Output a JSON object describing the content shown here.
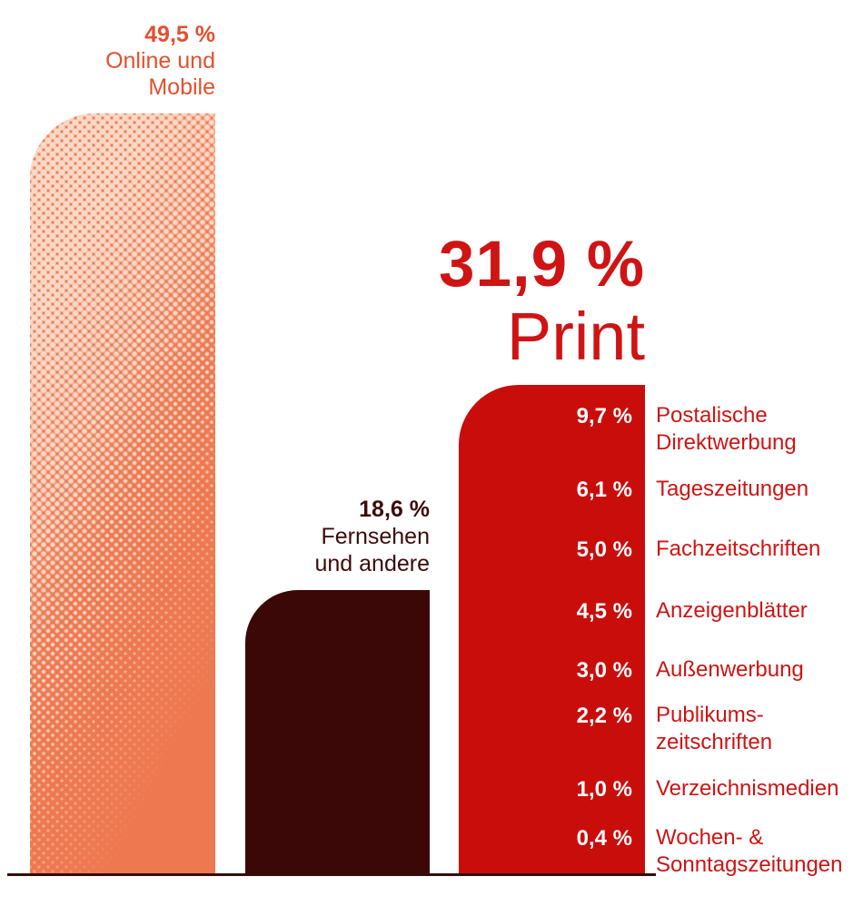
{
  "chart_data": {
    "type": "bar",
    "categories": [
      "Online und Mobile",
      "Fernsehen und andere",
      "Print"
    ],
    "values": [
      49.5,
      18.6,
      31.9
    ],
    "value_labels": [
      "49,5 %",
      "18,6 %",
      "31,9 %"
    ],
    "unit": "% share",
    "bar_colors": [
      "#ee7951",
      "#3b0707",
      "#c90d0b"
    ],
    "legend": false,
    "grid": false,
    "baseline_axis": true,
    "print_breakdown": {
      "values": [
        9.7,
        6.1,
        5.0,
        4.5,
        3.0,
        2.2,
        1.0,
        0.4
      ],
      "value_labels": [
        "9,7 %",
        "6,1 %",
        "5,0 %",
        "4,5 %",
        "3,0 %",
        "2,2 %",
        "1,0 %",
        "0,4 %"
      ],
      "labels": [
        "Postalische Direktwerbung",
        "Tageszeitungen",
        "Fachzeitschriften",
        "Anzeigenblätter",
        "Außenwerbung",
        "Publikumszeitschriften",
        "Verzeichnismedien",
        "Wochen- & Sonntagszeitungen"
      ]
    }
  },
  "labels": {
    "online": {
      "value": "49,5 %",
      "lines": [
        "Online und",
        "Mobile"
      ]
    },
    "tv": {
      "value": "18,6 %",
      "lines": [
        "Fernsehen",
        "und andere"
      ]
    },
    "print": {
      "value": "31,9 %",
      "name": "Print"
    },
    "rows": [
      {
        "value": "9,7 %",
        "lines": [
          "Postalische",
          "Direktwerbung"
        ]
      },
      {
        "value": "6,1 %",
        "lines": [
          "Tageszeitungen"
        ]
      },
      {
        "value": "5,0 %",
        "lines": [
          "Fachzeitschriften"
        ]
      },
      {
        "value": "4,5 %",
        "lines": [
          "Anzeigenblätter"
        ]
      },
      {
        "value": "3,0 %",
        "lines": [
          "Außenwerbung"
        ]
      },
      {
        "value": "2,2 %",
        "lines": [
          "Publikums-",
          "zeitschriften"
        ]
      },
      {
        "value": "1,0 %",
        "lines": [
          "Verzeichnismedien"
        ]
      },
      {
        "value": "0,4 %",
        "lines": [
          "Wochen- &",
          "Sonntagszeitungen"
        ]
      }
    ]
  },
  "colors": {
    "online_bar": "#ee7951",
    "online_text": "#e4502e",
    "online_dots": "#f8d8c6",
    "tv_bar": "#3b0707",
    "tv_text": "#3d0a0a",
    "print_bar": "#c90d0b",
    "print_text": "#ce1414",
    "value_on_bar": "#ffffff",
    "baseline": "#330d08"
  }
}
